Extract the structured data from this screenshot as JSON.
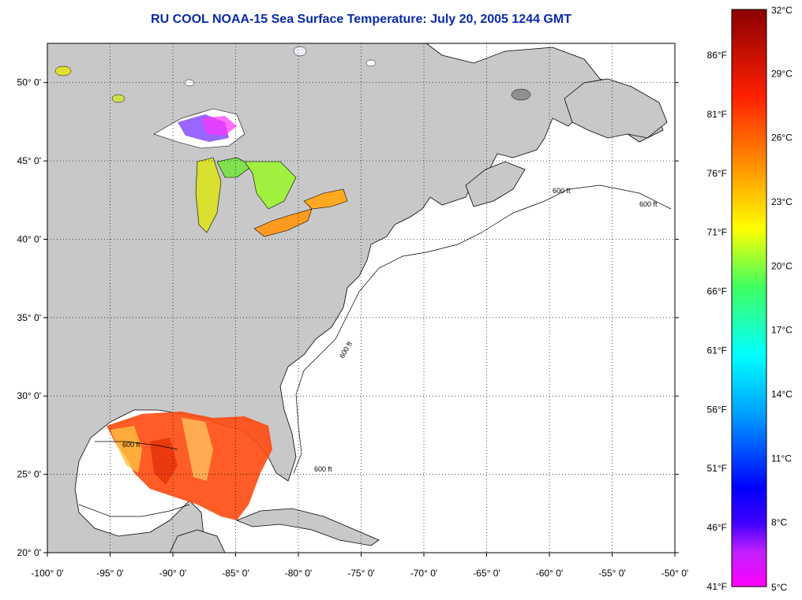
{
  "title": "RU COOL  NOAA-15  Sea Surface Temperature:  July 20, 2005 1244 GMT",
  "map": {
    "lon_range": [
      -100,
      -50
    ],
    "lat_range": [
      20,
      52.5
    ],
    "lon_ticks": [
      {
        "value": -100,
        "label": "-100° 0'"
      },
      {
        "value": -95,
        "label": "-95° 0'"
      },
      {
        "value": -90,
        "label": "-90° 0'"
      },
      {
        "value": -85,
        "label": "-85° 0'"
      },
      {
        "value": -80,
        "label": "-80° 0'"
      },
      {
        "value": -75,
        "label": "-75° 0'"
      },
      {
        "value": -70,
        "label": "-70° 0'"
      },
      {
        "value": -65,
        "label": "-65° 0'"
      },
      {
        "value": -60,
        "label": "-60° 0'"
      },
      {
        "value": -55,
        "label": "-55° 0'"
      },
      {
        "value": -50,
        "label": "-50° 0'"
      }
    ],
    "lat_ticks": [
      {
        "value": 50,
        "label": "50° 0'"
      },
      {
        "value": 45,
        "label": "45° 0'"
      },
      {
        "value": 40,
        "label": "40° 0'"
      },
      {
        "value": 35,
        "label": "35° 0'"
      },
      {
        "value": 30,
        "label": "30° 0'"
      },
      {
        "value": 25,
        "label": "25° 0'"
      },
      {
        "value": 20,
        "label": "20° 0'"
      }
    ],
    "grid": "dotted",
    "land_color": "#c8c8c8",
    "sea_color": "#ffffff",
    "isobath_label": "600 ft"
  },
  "colorbar": {
    "celsius_labels": [
      "32°C",
      "29°C",
      "26°C",
      "23°C",
      "20°C",
      "17°C",
      "14°C",
      "11°C",
      "8°C",
      "5°C"
    ],
    "fahrenheit_labels": [
      "86°F",
      "81°F",
      "76°F",
      "71°F",
      "66°F",
      "61°F",
      "56°F",
      "51°F",
      "46°F",
      "41°F"
    ],
    "colors": [
      "#ff00ff",
      "#a040ff",
      "#0000ff",
      "#00a0ff",
      "#00ffff",
      "#40ff80",
      "#ffff00",
      "#ffa000",
      "#ff3000",
      "#8b0000"
    ]
  }
}
